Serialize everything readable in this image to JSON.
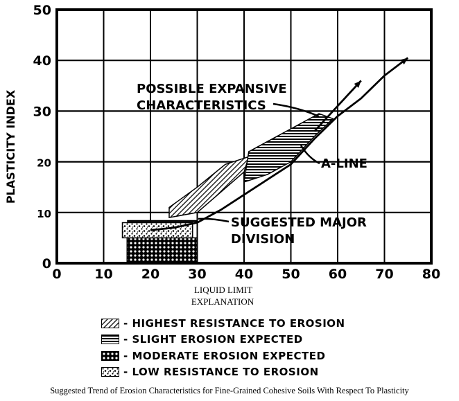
{
  "chart_data": {
    "type": "area",
    "x_axis": {
      "label": "LIQUID LIMIT",
      "range": [
        0,
        80
      ],
      "ticks": [
        0,
        10,
        20,
        30,
        40,
        50,
        60,
        70,
        80
      ]
    },
    "y_axis": {
      "label": "PLASTICITY INDEX",
      "range": [
        0,
        50
      ],
      "ticks": [
        0,
        10,
        20,
        30,
        40,
        50
      ]
    },
    "grid": true,
    "lines": [
      {
        "name": "A-LINE",
        "points": [
          [
            20,
            6.5
          ],
          [
            25,
            7
          ],
          [
            30,
            8
          ],
          [
            35,
            10.5
          ],
          [
            40,
            13.5
          ],
          [
            45,
            16.5
          ],
          [
            50,
            19.5
          ],
          [
            55,
            24.5
          ],
          [
            60,
            29
          ],
          [
            65,
            32.5
          ],
          [
            70,
            37
          ],
          [
            75,
            40.5
          ]
        ]
      },
      {
        "name": "POSSIBLE EXPANSIVE CHARACTERISTICS",
        "points": [
          [
            55,
            26
          ],
          [
            60,
            31
          ],
          [
            65,
            36
          ]
        ]
      }
    ],
    "regions": [
      {
        "name": "HIGHEST RESISTANCE TO EROSION",
        "pattern": "diagonal",
        "polygon": [
          [
            24,
            9
          ],
          [
            30,
            10
          ],
          [
            35,
            14
          ],
          [
            40,
            18
          ],
          [
            41,
            21
          ],
          [
            36,
            19.5
          ],
          [
            30,
            15
          ],
          [
            24,
            11
          ]
        ]
      },
      {
        "name": "SLIGHT EROSION EXPECTED",
        "pattern": "horizontal",
        "polygon": [
          [
            40,
            16
          ],
          [
            45,
            17.5
          ],
          [
            50,
            20
          ],
          [
            55,
            25
          ],
          [
            59,
            28.5
          ],
          [
            56,
            29.5
          ],
          [
            50,
            26.5
          ],
          [
            45,
            24
          ],
          [
            41,
            22
          ]
        ]
      },
      {
        "name": "MODERATE EROSION EXPECTED",
        "pattern": "crosshatch",
        "polygon": [
          [
            15,
            5
          ],
          [
            30,
            5
          ],
          [
            30,
            0
          ],
          [
            15,
            0
          ]
        ]
      },
      {
        "name": "LOW RESISTANCE TO EROSION",
        "pattern": "stipple",
        "polygon": [
          [
            14,
            8
          ],
          [
            29,
            8
          ],
          [
            29,
            5
          ],
          [
            14,
            5
          ]
        ]
      }
    ],
    "annotations": [
      {
        "lines": [
          "POSSIBLE EXPANSIVE",
          "CHARACTERISTICS"
        ]
      },
      {
        "lines": [
          "A-LINE"
        ]
      },
      {
        "lines": [
          "SUGGESTED MAJOR",
          "DIVISION"
        ]
      }
    ]
  },
  "explanation_title": "EXPLANATION",
  "legend": [
    {
      "pattern": "diagonal",
      "label": "- HIGHEST RESISTANCE TO EROSION"
    },
    {
      "pattern": "horizontal",
      "label": "- SLIGHT EROSION EXPECTED"
    },
    {
      "pattern": "crosshatch",
      "label": "- MODERATE EROSION EXPECTED"
    },
    {
      "pattern": "stipple",
      "label": "- LOW RESISTANCE TO EROSION"
    }
  ],
  "caption": "Suggested Trend of Erosion Characteristics for Fine-Grained Cohesive Soils With Respect To Plasticity"
}
